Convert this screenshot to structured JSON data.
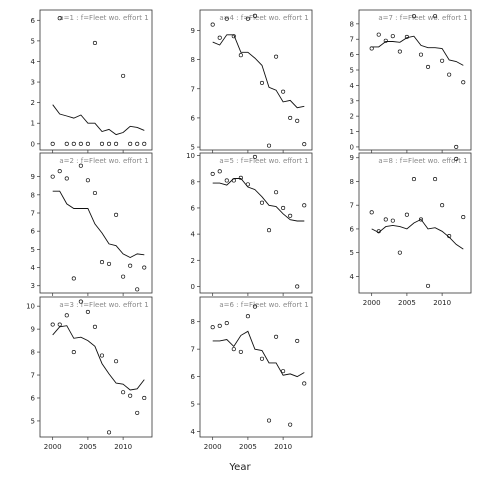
{
  "chart_data": {
    "type": "scatter",
    "xlabel": "Year",
    "ylabel": "",
    "title": "",
    "x": [
      2000,
      2001,
      2002,
      2003,
      2004,
      2005,
      2006,
      2007,
      2008,
      2009,
      2010,
      2011,
      2012,
      2013
    ],
    "x_ticks": [
      2000,
      2005,
      2010
    ],
    "panels": [
      {
        "title": "a=1 : f=Fleet wo. effort 1",
        "ylim": [
          -0.3,
          6.5
        ],
        "yticks": [
          0,
          1,
          2,
          3,
          4,
          5,
          6
        ],
        "points": [
          0,
          6.1,
          0,
          0,
          0,
          0,
          4.9,
          0,
          0,
          0,
          3.3,
          0,
          0,
          0
        ],
        "line": [
          1.9,
          1.45,
          1.35,
          1.25,
          1.4,
          1.0,
          1.0,
          0.6,
          0.7,
          0.45,
          0.55,
          0.85,
          0.8,
          0.65
        ]
      },
      {
        "title": "a=2 : f=Fleet wo. effort 1",
        "ylim": [
          2.6,
          10.3
        ],
        "yticks": [
          3,
          4,
          5,
          6,
          7,
          8,
          9
        ],
        "points": [
          9.0,
          9.3,
          8.9,
          3.4,
          9.6,
          8.8,
          8.1,
          4.3,
          4.2,
          6.9,
          3.5,
          4.1,
          2.8,
          4.0
        ],
        "line": [
          8.2,
          8.2,
          7.5,
          7.25,
          7.25,
          7.25,
          6.4,
          5.9,
          5.3,
          5.2,
          4.75,
          4.55,
          4.75,
          4.7
        ]
      },
      {
        "title": "a=3 : f=Fleet wo. effort 1",
        "ylim": [
          4.3,
          10.4
        ],
        "yticks": [
          5,
          6,
          7,
          8,
          9,
          10
        ],
        "points": [
          9.2,
          9.2,
          9.6,
          8.0,
          10.2,
          9.75,
          9.1,
          7.85,
          4.5,
          7.6,
          6.25,
          6.1,
          5.35,
          6.0
        ],
        "line": [
          8.75,
          9.1,
          9.15,
          8.6,
          8.65,
          8.5,
          8.25,
          7.5,
          7.05,
          6.65,
          6.6,
          6.35,
          6.4,
          6.8
        ]
      },
      {
        "title": "a=4 : f=Fleet wo. effort 1",
        "ylim": [
          4.9,
          9.7
        ],
        "yticks": [
          5,
          6,
          7,
          8,
          9
        ],
        "points": [
          9.2,
          8.75,
          9.4,
          8.8,
          8.15,
          9.4,
          9.5,
          7.2,
          5.05,
          8.1,
          6.9,
          6.0,
          5.9,
          5.1
        ],
        "line": [
          8.6,
          8.5,
          8.85,
          8.85,
          8.25,
          8.25,
          8.05,
          7.8,
          7.05,
          6.95,
          6.55,
          6.6,
          6.35,
          6.4
        ]
      },
      {
        "title": "a=5 : f=Fleet wo. effort 1",
        "ylim": [
          -0.5,
          10.2
        ],
        "yticks": [
          0,
          2,
          4,
          6,
          8,
          10
        ],
        "points": [
          8.6,
          8.8,
          8.1,
          8.1,
          8.3,
          7.8,
          9.9,
          6.4,
          4.3,
          7.2,
          6.0,
          5.4,
          0,
          6.2
        ],
        "line": [
          7.9,
          7.9,
          7.75,
          8.25,
          8.25,
          7.6,
          7.4,
          6.85,
          6.2,
          6.1,
          5.55,
          5.1,
          5.0,
          5.0
        ]
      },
      {
        "title": "a=6 : f=Fleet wo. effort 1",
        "ylim": [
          3.8,
          8.9
        ],
        "yticks": [
          4,
          5,
          6,
          7,
          8
        ],
        "points": [
          7.8,
          7.85,
          7.95,
          7.0,
          6.9,
          8.2,
          8.55,
          6.65,
          4.4,
          7.45,
          6.2,
          4.25,
          7.3,
          5.75
        ],
        "line": [
          7.3,
          7.3,
          7.35,
          7.1,
          7.5,
          7.65,
          7.0,
          6.95,
          6.5,
          6.5,
          6.05,
          6.1,
          6.0,
          6.15
        ]
      },
      {
        "title": "a=7 : f=Fleet wo. effort 1",
        "ylim": [
          -0.2,
          8.9
        ],
        "yticks": [
          0,
          1,
          2,
          3,
          4,
          5,
          6,
          7,
          8
        ],
        "points": [
          6.4,
          7.3,
          6.9,
          7.2,
          6.2,
          7.15,
          8.5,
          6.0,
          5.2,
          8.5,
          5.6,
          4.7,
          0,
          4.2
        ],
        "line": [
          6.5,
          6.5,
          6.85,
          6.85,
          6.8,
          7.1,
          7.2,
          6.6,
          6.45,
          6.45,
          6.4,
          5.65,
          5.55,
          5.3
        ]
      },
      {
        "title": "a=8 : f=Fleet wo. effort 1",
        "ylim": [
          3.3,
          9.2
        ],
        "yticks": [
          4,
          5,
          6,
          7,
          8,
          9
        ],
        "points": [
          6.7,
          5.9,
          6.4,
          6.35,
          5.0,
          6.6,
          8.1,
          6.4,
          3.6,
          8.1,
          7.0,
          5.7,
          8.95,
          6.5
        ],
        "line": [
          6.0,
          5.85,
          6.1,
          6.15,
          6.1,
          6.0,
          6.25,
          6.4,
          6.0,
          6.05,
          5.9,
          5.65,
          5.35,
          5.15
        ]
      }
    ]
  }
}
